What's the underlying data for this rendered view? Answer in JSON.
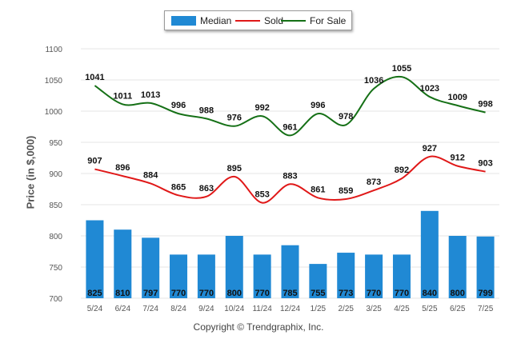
{
  "legend": {
    "median": "Median",
    "sold": "Sold",
    "for_sale": "For Sale"
  },
  "footer": {
    "copyright": "Copyright © Trendgraphix, Inc."
  },
  "colors": {
    "median": "#2089d4",
    "sold": "#e01818",
    "for_sale": "#157016",
    "grid": "#e4e4e4",
    "tick": "#555555"
  },
  "chart_data": {
    "type": "bar",
    "categories": [
      "5/24",
      "6/24",
      "7/24",
      "8/24",
      "9/24",
      "10/24",
      "11/24",
      "12/24",
      "1/25",
      "2/25",
      "3/25",
      "4/25",
      "5/25",
      "6/25",
      "7/25"
    ],
    "ylabel": "Price (in $,000)",
    "ylim": [
      700,
      1100
    ],
    "yticks": [
      700,
      750,
      800,
      850,
      900,
      950,
      1000,
      1050,
      1100
    ],
    "grid": true,
    "legend_position": "top-center",
    "series": [
      {
        "name": "Median",
        "type": "bar",
        "values": [
          825,
          810,
          797,
          770,
          770,
          800,
          770,
          785,
          755,
          773,
          770,
          770,
          840,
          800,
          799
        ]
      },
      {
        "name": "Sold",
        "type": "line",
        "values": [
          907,
          896,
          884,
          865,
          863,
          895,
          853,
          883,
          861,
          859,
          873,
          892,
          927,
          912,
          903
        ]
      },
      {
        "name": "For Sale",
        "type": "line",
        "values": [
          1041,
          1011,
          1013,
          996,
          988,
          976,
          992,
          961,
          996,
          978,
          1036,
          1055,
          1023,
          1009,
          998
        ]
      }
    ]
  }
}
